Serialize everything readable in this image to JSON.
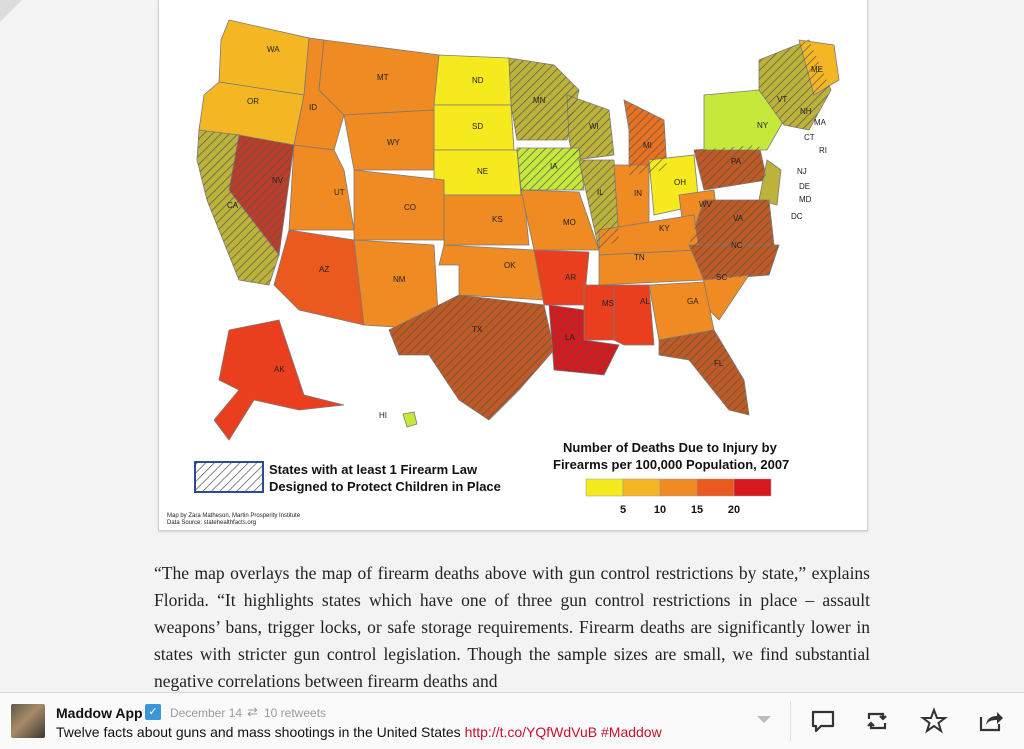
{
  "map": {
    "legend_title_line1": "Number of Deaths Due to Injury by",
    "legend_title_line2": "Firearms per 100,000 Population, 2007",
    "legend_ticks": [
      "5",
      "10",
      "15",
      "20"
    ],
    "legend_colors": [
      "#f6ea1f",
      "#f4b723",
      "#f08a22",
      "#ea5a1f",
      "#d7181d"
    ],
    "hatch_label_line1": "States with at least 1 Firearm Law",
    "hatch_label_line2": "Designed to Protect Children in Place",
    "credit_line1": "Map by Zara Matheson, Martin Prosperity Institute",
    "credit_line2": "Data Source: statehealthfacts.org",
    "state_labels": [
      "WA",
      "OR",
      "ID",
      "MT",
      "ND",
      "MN",
      "WI",
      "MI",
      "ME",
      "VT",
      "NH",
      "MA",
      "RI",
      "CT",
      "NY",
      "SD",
      "WY",
      "IA",
      "NE",
      "NV",
      "CA",
      "UT",
      "CO",
      "KS",
      "MO",
      "IL",
      "IN",
      "OH",
      "PA",
      "NJ",
      "DE",
      "MD",
      "DC",
      "WV",
      "VA",
      "KY",
      "NC",
      "TN",
      "AZ",
      "NM",
      "OK",
      "AR",
      "SC",
      "TX",
      "MS",
      "AL",
      "GA",
      "LA",
      "FL",
      "AK",
      "HI"
    ]
  },
  "article": {
    "paragraph": "“The map overlays the map of firearm deaths above with gun control restrictions by state,” explains Florida. “It highlights states which have one of three gun control restrictions in place – assault weapons’ bans, trigger locks, or safe storage requirements. Firearm deaths are significantly lower in states with stricter gun control legislation. Though the sample sizes are small, we find substantial negative correlations between firearm deaths and"
  },
  "tweet": {
    "name": "Maddow App",
    "date": "December 14",
    "retweets": "10 retweets",
    "text": "Twelve facts about guns and mass shootings in the United States ",
    "link": "http://t.co/YQfWdVuB #Maddow",
    "actions": [
      "reply-icon",
      "retweet-icon",
      "favorite-icon",
      "share-icon"
    ]
  }
}
